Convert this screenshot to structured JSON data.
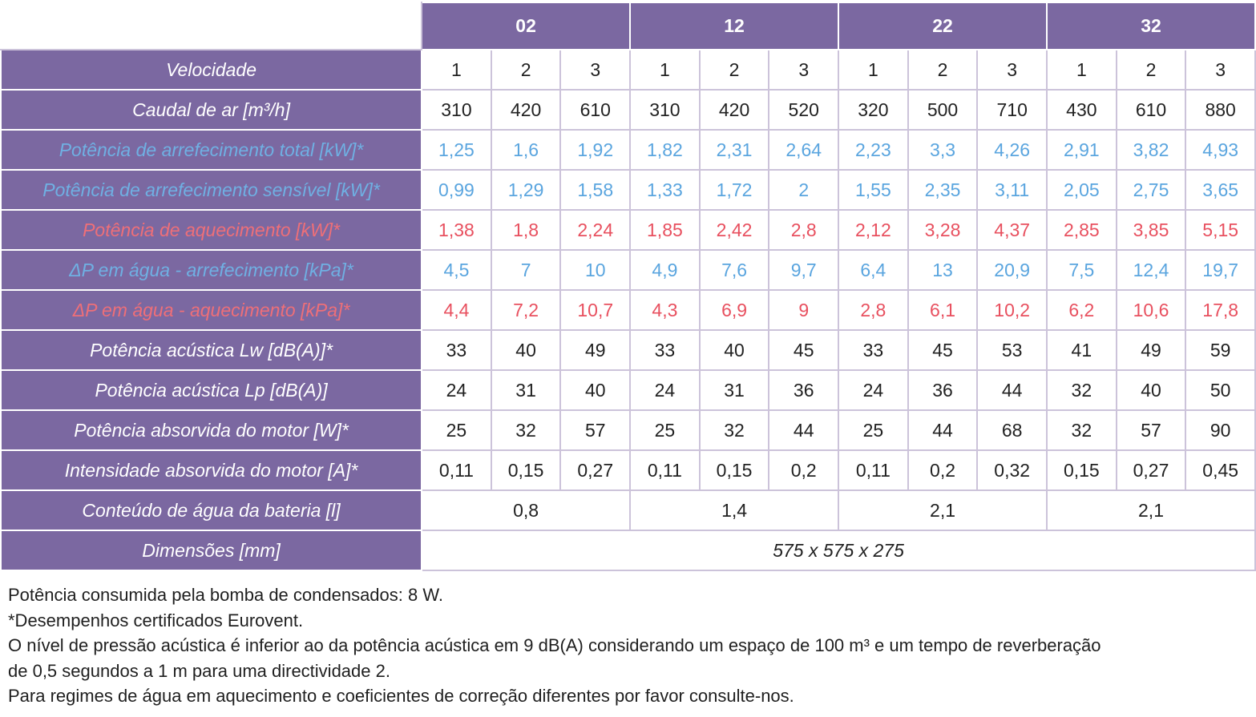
{
  "models": [
    "02",
    "12",
    "22",
    "32"
  ],
  "rows": [
    {
      "label": "Velocidade",
      "values": [
        "1",
        "2",
        "3",
        "1",
        "2",
        "3",
        "1",
        "2",
        "3",
        "1",
        "2",
        "3"
      ]
    },
    {
      "label": "Caudal de ar [m³/h]",
      "values": [
        "310",
        "420",
        "610",
        "310",
        "420",
        "520",
        "320",
        "500",
        "710",
        "430",
        "610",
        "880"
      ]
    },
    {
      "label": "Potência de arrefecimento total [kW]*",
      "values": [
        "1,25",
        "1,6",
        "1,92",
        "1,82",
        "2,31",
        "2,64",
        "2,23",
        "3,3",
        "4,26",
        "2,91",
        "3,82",
        "4,93"
      ]
    },
    {
      "label": "Potência de arrefecimento sensível [kW]*",
      "values": [
        "0,99",
        "1,29",
        "1,58",
        "1,33",
        "1,72",
        "2",
        "1,55",
        "2,35",
        "3,11",
        "2,05",
        "2,75",
        "3,65"
      ]
    },
    {
      "label": "Potência de aquecimento [kW]*",
      "values": [
        "1,38",
        "1,8",
        "2,24",
        "1,85",
        "2,42",
        "2,8",
        "2,12",
        "3,28",
        "4,37",
        "2,85",
        "3,85",
        "5,15"
      ]
    },
    {
      "label": "ΔP em água - arrefecimento [kPa]*",
      "values": [
        "4,5",
        "7",
        "10",
        "4,9",
        "7,6",
        "9,7",
        "6,4",
        "13",
        "20,9",
        "7,5",
        "12,4",
        "19,7"
      ]
    },
    {
      "label": "ΔP em água - aquecimento [kPa]*",
      "values": [
        "4,4",
        "7,2",
        "10,7",
        "4,3",
        "6,9",
        "9",
        "2,8",
        "6,1",
        "10,2",
        "6,2",
        "10,6",
        "17,8"
      ]
    },
    {
      "label": "Potência acústica Lw [dB(A)]*",
      "values": [
        "33",
        "40",
        "49",
        "33",
        "40",
        "45",
        "33",
        "45",
        "53",
        "41",
        "49",
        "59"
      ]
    },
    {
      "label": "Potência acústica Lp [dB(A)]",
      "values": [
        "24",
        "31",
        "40",
        "24",
        "31",
        "36",
        "24",
        "36",
        "44",
        "32",
        "40",
        "50"
      ]
    },
    {
      "label": "Potência absorvida do motor [W]*",
      "values": [
        "25",
        "32",
        "57",
        "25",
        "32",
        "44",
        "25",
        "44",
        "68",
        "32",
        "57",
        "90"
      ]
    },
    {
      "label": "Intensidade absorvida do motor [A]*",
      "values": [
        "0,11",
        "0,15",
        "0,27",
        "0,11",
        "0,15",
        "0,2",
        "0,11",
        "0,2",
        "0,32",
        "0,15",
        "0,27",
        "0,45"
      ]
    }
  ],
  "water_content": {
    "label": "Conteúdo de água da bateria [l]",
    "values": [
      "0,8",
      "1,4",
      "2,1",
      "2,1"
    ]
  },
  "dimensions": {
    "label": "Dimensões [mm]",
    "value": "575 x 575 x 275"
  },
  "notes": [
    "Potência consumida pela bomba de condensados: 8 W.",
    "*Desempenhos certificados Eurovent.",
    "O nível de pressão acústica é inferior ao da potência acústica em 9 dB(A) considerando um espaço de 100 m³ e um tempo de reverberação",
    "de 0,5 segundos a 1 m para uma directividade 2.",
    "Para regimes de água em aquecimento e coeficientes de correção diferentes por favor consulte-nos."
  ],
  "colors": {
    "header_bg": "#7b68a1",
    "border": "#ccc3da",
    "cooling_blue": "#5aa5df",
    "heating_red": "#e8505f"
  }
}
